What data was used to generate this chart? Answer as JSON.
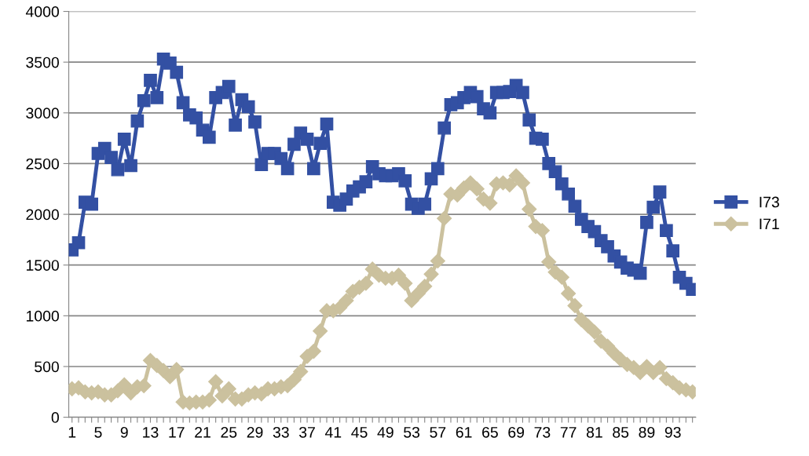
{
  "chart_data": {
    "type": "line",
    "categories": [
      "1",
      null,
      null,
      null,
      "5",
      null,
      null,
      null,
      "9",
      null,
      null,
      null,
      "13",
      null,
      null,
      null,
      "17",
      null,
      null,
      null,
      "21",
      null,
      null,
      null,
      "25",
      null,
      null,
      null,
      "29",
      null,
      null,
      null,
      "33",
      null,
      null,
      null,
      "37",
      null,
      null,
      null,
      "41",
      null,
      null,
      null,
      "45",
      null,
      null,
      null,
      "49",
      null,
      null,
      null,
      "53",
      null,
      null,
      null,
      "57",
      null,
      null,
      null,
      "61",
      null,
      null,
      null,
      "65",
      null,
      null,
      null,
      "69",
      null,
      null,
      null,
      "73",
      null,
      null,
      null,
      "77",
      null,
      null,
      null,
      "81",
      null,
      null,
      null,
      "85",
      null,
      null,
      null,
      "89",
      null,
      null,
      null,
      "93",
      null,
      null,
      null
    ],
    "series": [
      {
        "name": "I73",
        "color": "#3350a3",
        "marker": "square",
        "values": [
          1650,
          1720,
          2120,
          2100,
          2600,
          2650,
          2560,
          2440,
          2740,
          2480,
          2920,
          3120,
          3320,
          3150,
          3530,
          3490,
          3400,
          3100,
          2980,
          2950,
          2830,
          2760,
          3150,
          3200,
          3260,
          2880,
          3130,
          3060,
          2910,
          2490,
          2600,
          2600,
          2550,
          2450,
          2690,
          2800,
          2740,
          2450,
          2700,
          2890,
          2120,
          2090,
          2150,
          2230,
          2270,
          2320,
          2470,
          2400,
          2380,
          2380,
          2400,
          2330,
          2100,
          2060,
          2100,
          2350,
          2450,
          2850,
          3080,
          3100,
          3150,
          3200,
          3160,
          3040,
          3000,
          3200,
          3200,
          3210,
          3270,
          3200,
          2930,
          2750,
          2740,
          2500,
          2420,
          2300,
          2200,
          2080,
          1950,
          1880,
          1830,
          1740,
          1680,
          1590,
          1530,
          1470,
          1450,
          1420,
          1920,
          2070,
          2220,
          1840,
          1640,
          1380,
          1320,
          1260
        ]
      },
      {
        "name": "I71",
        "color": "#cbc19e",
        "marker": "diamond",
        "values": [
          280,
          290,
          250,
          240,
          250,
          220,
          220,
          260,
          320,
          240,
          300,
          310,
          560,
          510,
          460,
          400,
          470,
          150,
          140,
          150,
          150,
          170,
          350,
          210,
          280,
          180,
          180,
          220,
          240,
          230,
          280,
          280,
          300,
          310,
          370,
          450,
          600,
          650,
          850,
          1050,
          1050,
          1080,
          1150,
          1240,
          1280,
          1320,
          1460,
          1400,
          1370,
          1370,
          1400,
          1320,
          1150,
          1220,
          1290,
          1410,
          1540,
          1960,
          2200,
          2190,
          2260,
          2310,
          2250,
          2150,
          2110,
          2300,
          2310,
          2290,
          2380,
          2310,
          2050,
          1880,
          1840,
          1530,
          1430,
          1380,
          1220,
          1100,
          960,
          900,
          840,
          750,
          700,
          630,
          570,
          520,
          490,
          440,
          500,
          440,
          490,
          380,
          340,
          290,
          270,
          250
        ]
      }
    ],
    "ylim": [
      0,
      4000
    ],
    "yticks": [
      0,
      500,
      1000,
      1500,
      2000,
      2500,
      3000,
      3500,
      4000
    ],
    "grid": "y",
    "legend": "right",
    "line_style": "solid"
  }
}
